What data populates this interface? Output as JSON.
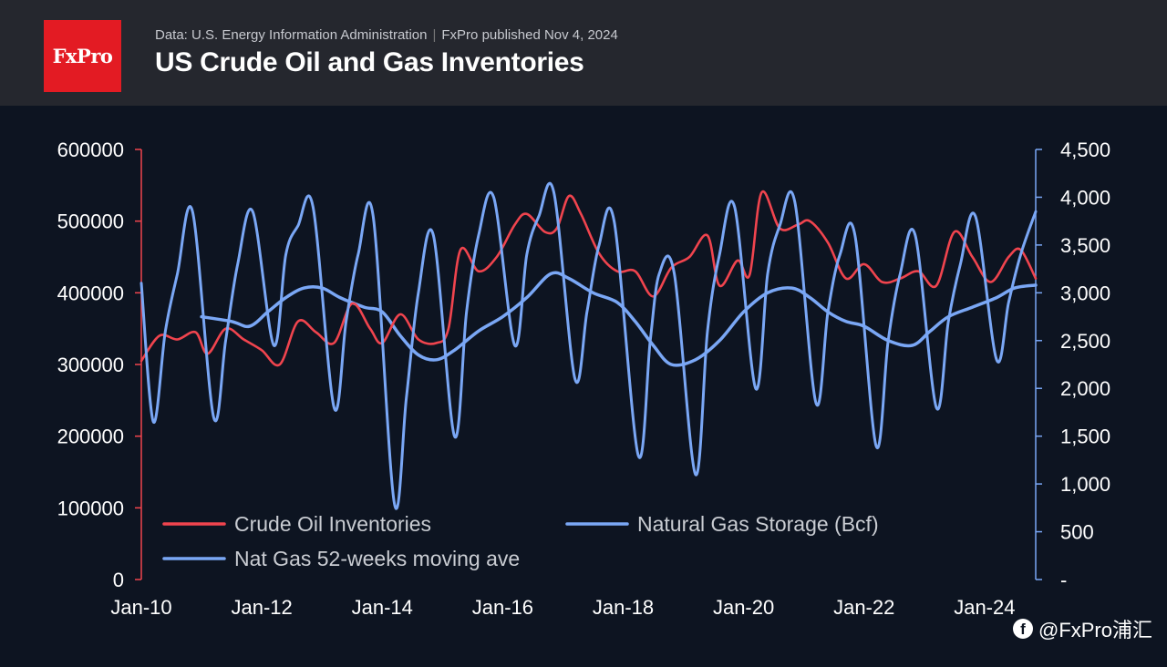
{
  "header": {
    "logo_text": "FxPro",
    "source_text": "Data: U.S. Energy Information Administration",
    "publisher_text": "FxPro published Nov 4, 2024",
    "title": "US Crude Oil and Gas Inventories"
  },
  "watermark": {
    "text": "@FxPro浦汇"
  },
  "colors": {
    "oil": "#f0444e",
    "gas": "#7aa7f5",
    "ma": "#7aa7f5",
    "bg": "#0d1421",
    "header_bg": "#25272e",
    "logo": "#e31b23"
  },
  "chart_data": {
    "type": "line",
    "title": "US Crude Oil and Gas Inventories",
    "x_tick_labels": [
      "Jan-10",
      "Jan-12",
      "Jan-14",
      "Jan-16",
      "Jan-18",
      "Jan-20",
      "Jan-22",
      "Jan-24"
    ],
    "x_tick_years": [
      2010,
      2012,
      2014,
      2016,
      2018,
      2020,
      2022,
      2024
    ],
    "xlim": [
      2010,
      2024.85
    ],
    "y_left": {
      "range": [
        0,
        600000
      ],
      "ticks": [
        0,
        100000,
        200000,
        300000,
        400000,
        500000,
        600000
      ],
      "tick_labels": [
        "0",
        "100000",
        "200000",
        "300000",
        "400000",
        "500000",
        "600000"
      ]
    },
    "y_right": {
      "range": [
        0,
        4500
      ],
      "ticks": [
        0,
        500,
        1000,
        1500,
        2000,
        2500,
        3000,
        3500,
        4000,
        4500
      ],
      "tick_labels": [
        "-",
        "500",
        "1,000",
        "1,500",
        "2,000",
        "2,500",
        "3,000",
        "3,500",
        "4,000",
        "4,500"
      ]
    },
    "legend": [
      "Crude Oil Inventories",
      "Natural Gas Storage (Bcf)",
      "Nat Gas 52-weeks moving ave"
    ],
    "series": [
      {
        "name": "Crude Oil Inventories",
        "axis": "left",
        "x": [
          2010.0,
          2010.3,
          2010.6,
          2010.9,
          2011.1,
          2011.4,
          2011.7,
          2012.0,
          2012.3,
          2012.6,
          2012.9,
          2013.2,
          2013.5,
          2013.8,
          2014.0,
          2014.3,
          2014.6,
          2014.9,
          2015.1,
          2015.3,
          2015.6,
          2015.9,
          2016.2,
          2016.4,
          2016.7,
          2016.9,
          2017.1,
          2017.3,
          2017.6,
          2017.9,
          2018.2,
          2018.5,
          2018.8,
          2019.1,
          2019.4,
          2019.6,
          2019.9,
          2020.1,
          2020.3,
          2020.6,
          2020.9,
          2021.1,
          2021.4,
          2021.7,
          2022.0,
          2022.3,
          2022.6,
          2022.9,
          2023.2,
          2023.5,
          2023.8,
          2024.1,
          2024.4,
          2024.6,
          2024.85
        ],
        "values": [
          305000,
          340000,
          335000,
          345000,
          315000,
          350000,
          335000,
          320000,
          300000,
          360000,
          345000,
          330000,
          385000,
          350000,
          330000,
          370000,
          335000,
          330000,
          350000,
          460000,
          430000,
          450000,
          495000,
          510000,
          485000,
          490000,
          535000,
          510000,
          455000,
          430000,
          430000,
          395000,
          435000,
          450000,
          480000,
          410000,
          445000,
          425000,
          540000,
          490000,
          495000,
          500000,
          470000,
          420000,
          440000,
          415000,
          420000,
          430000,
          410000,
          485000,
          450000,
          415000,
          450000,
          460000,
          420000
        ]
      },
      {
        "name": "Natural Gas Storage (Bcf)",
        "axis": "right",
        "x": [
          2010.0,
          2010.2,
          2010.4,
          2010.6,
          2010.85,
          2011.2,
          2011.4,
          2011.6,
          2011.85,
          2012.2,
          2012.4,
          2012.6,
          2012.85,
          2013.2,
          2013.4,
          2013.6,
          2013.85,
          2014.2,
          2014.4,
          2014.6,
          2014.85,
          2015.2,
          2015.4,
          2015.6,
          2015.85,
          2016.2,
          2016.4,
          2016.6,
          2016.85,
          2017.2,
          2017.4,
          2017.6,
          2017.85,
          2018.25,
          2018.45,
          2018.6,
          2018.85,
          2019.2,
          2019.4,
          2019.6,
          2019.85,
          2020.2,
          2020.4,
          2020.6,
          2020.85,
          2021.2,
          2021.4,
          2021.6,
          2021.85,
          2022.2,
          2022.4,
          2022.6,
          2022.85,
          2023.2,
          2023.4,
          2023.6,
          2023.85,
          2024.2,
          2024.4,
          2024.6,
          2024.85
        ],
        "values": [
          3100,
          1650,
          2600,
          3200,
          3850,
          1700,
          2500,
          3300,
          3850,
          2450,
          3400,
          3700,
          3900,
          1800,
          2700,
          3400,
          3800,
          800,
          1900,
          3000,
          3600,
          1500,
          2800,
          3600,
          4000,
          2450,
          3400,
          3800,
          4050,
          2100,
          2800,
          3500,
          3750,
          1300,
          2500,
          3200,
          3200,
          1100,
          2600,
          3400,
          3900,
          2000,
          3200,
          3700,
          3950,
          1850,
          2800,
          3400,
          3600,
          1400,
          2500,
          3200,
          3600,
          1800,
          2700,
          3300,
          3800,
          2300,
          2900,
          3400,
          3850
        ]
      },
      {
        "name": "Nat Gas 52-weeks moving ave",
        "axis": "right",
        "x": [
          2011.0,
          2011.5,
          2011.8,
          2012.1,
          2012.4,
          2012.7,
          2013.0,
          2013.3,
          2013.7,
          2014.0,
          2014.3,
          2014.6,
          2014.9,
          2015.2,
          2015.6,
          2016.0,
          2016.4,
          2016.8,
          2017.1,
          2017.5,
          2017.9,
          2018.2,
          2018.5,
          2018.8,
          2019.2,
          2019.6,
          2020.0,
          2020.4,
          2020.8,
          2021.1,
          2021.4,
          2021.7,
          2022.0,
          2022.4,
          2022.8,
          2023.1,
          2023.4,
          2023.8,
          2024.2,
          2024.5,
          2024.85
        ],
        "values": [
          2750,
          2700,
          2650,
          2800,
          2950,
          3050,
          3050,
          2950,
          2850,
          2800,
          2550,
          2350,
          2300,
          2400,
          2600,
          2750,
          2950,
          3200,
          3150,
          3000,
          2900,
          2700,
          2450,
          2250,
          2300,
          2500,
          2800,
          3000,
          3050,
          2950,
          2800,
          2700,
          2650,
          2500,
          2450,
          2600,
          2750,
          2850,
          2950,
          3050,
          3080
        ]
      }
    ]
  }
}
